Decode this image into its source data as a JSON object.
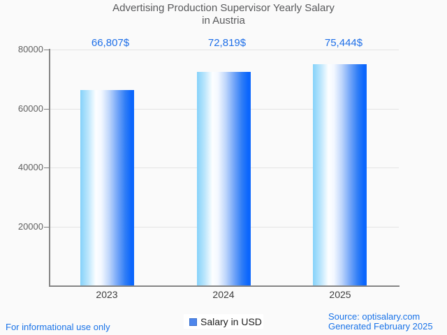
{
  "title": {
    "line1": "Advertising Production Supervisor Yearly Salary",
    "line2": "in Austria"
  },
  "chart_data": {
    "type": "bar",
    "title": "Advertising Production Supervisor Yearly Salary in Austria",
    "categories": [
      "2023",
      "2024",
      "2025"
    ],
    "values": [
      66807,
      72819,
      75444
    ],
    "value_labels": [
      "66,807$",
      "72,819$",
      "75,444$"
    ],
    "series_name": "Salary in USD",
    "xlabel": "",
    "ylabel": "",
    "ylim": [
      0,
      80000
    ],
    "yticks": [
      80000,
      60000,
      40000,
      20000
    ],
    "ytick_labels": [
      "80000",
      "60000",
      "40000",
      "20000"
    ],
    "grid": true,
    "legend_position": "bottom"
  },
  "legend": {
    "label": "Salary in USD",
    "marker_color": "#4e86ec"
  },
  "footer": {
    "informational": "For informational use only",
    "source": "Source: optisalary.com",
    "generated": "Generated February 2025"
  },
  "colors": {
    "accent_blue": "#1a73e8",
    "value_label_blue": "#1e6fe8",
    "bar_gradient_left": "#85d2fa",
    "bar_gradient_mid": "#ffffff",
    "bar_gradient_right": "#0b66fd",
    "title_gray": "#58595b",
    "axis_gray": "#858585",
    "gridline_gray": "#e4e4e4",
    "background": "#fafafa"
  }
}
